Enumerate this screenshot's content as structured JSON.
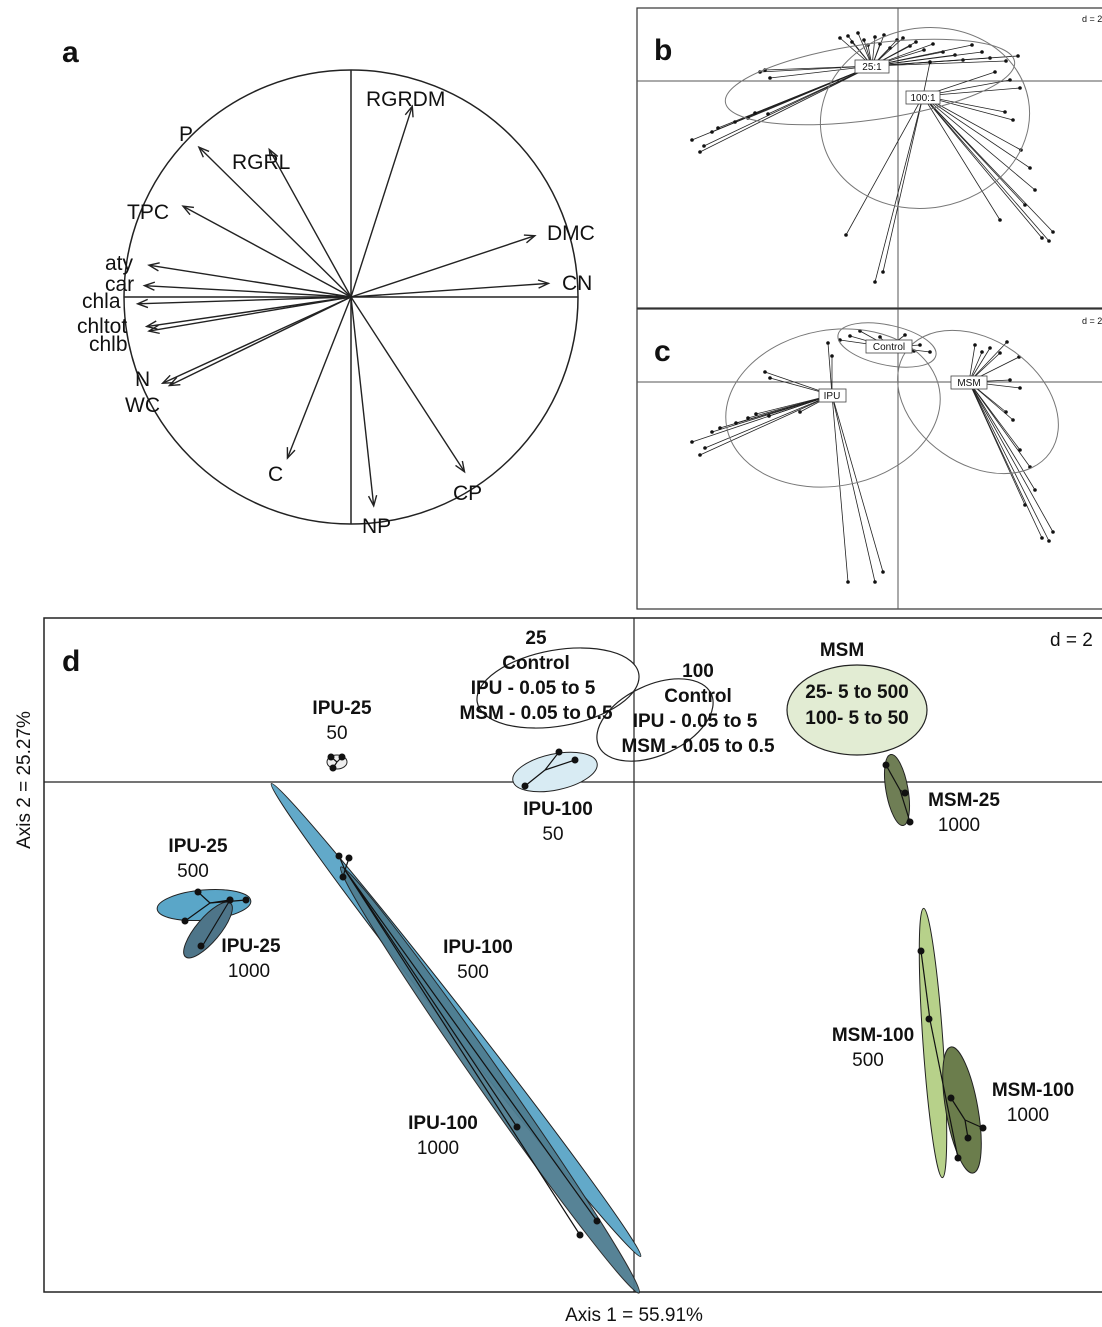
{
  "chart_data": [
    {
      "panel": "a",
      "type": "correlation-circle",
      "vectors": [
        {
          "name": "RGRDM",
          "x": 0.27,
          "y": 0.84
        },
        {
          "name": "RGRL",
          "x": -0.36,
          "y": 0.65
        },
        {
          "name": "P",
          "x": -0.67,
          "y": 0.66
        },
        {
          "name": "TPC",
          "x": -0.74,
          "y": 0.4
        },
        {
          "name": "DMC",
          "x": 0.81,
          "y": 0.27
        },
        {
          "name": "CN",
          "x": 0.87,
          "y": 0.06
        },
        {
          "name": "aty",
          "x": -0.89,
          "y": 0.14
        },
        {
          "name": "car",
          "x": -0.91,
          "y": 0.05
        },
        {
          "name": "chla",
          "x": -0.94,
          "y": -0.03
        },
        {
          "name": "chltot",
          "x": -0.9,
          "y": -0.13
        },
        {
          "name": "chlb",
          "x": -0.89,
          "y": -0.15
        },
        {
          "name": "N",
          "x": -0.83,
          "y": -0.38
        },
        {
          "name": "WC",
          "x": -0.8,
          "y": -0.39
        },
        {
          "name": "C",
          "x": -0.28,
          "y": -0.71
        },
        {
          "name": "NP",
          "x": 0.1,
          "y": -0.92
        },
        {
          "name": "CP",
          "x": 0.5,
          "y": -0.77
        }
      ]
    },
    {
      "panel": "b",
      "type": "scatter",
      "scale_label": "d = 2",
      "groups": [
        {
          "name": "25:1",
          "x": -0.2,
          "y": 0.8
        },
        {
          "name": "100:1",
          "x": 1.2,
          "y": -0.9
        }
      ]
    },
    {
      "panel": "c",
      "type": "scatter",
      "scale_label": "d = 2",
      "groups": [
        {
          "name": "Control",
          "x": -0.4,
          "y": 1.7
        },
        {
          "name": "IPU",
          "x": -3.8,
          "y": -0.7
        },
        {
          "name": "MSM",
          "x": 3.8,
          "y": 0.0
        }
      ]
    },
    {
      "panel": "d",
      "type": "scatter",
      "scale_label": "d = 2",
      "xlabel": "Axis 1 = 55.91%",
      "ylabel": "Axis 2 = 25.27%",
      "groups": [
        {
          "title": "25",
          "lines": [
            "Control",
            "IPU - 0.05 to 5",
            "MSM - 0.05 to 0.5"
          ],
          "x": -1.1,
          "y": 3.0
        },
        {
          "title": "100",
          "lines": [
            "Control",
            "IPU - 0.05 to 5",
            "MSM - 0.05 to 0.5"
          ],
          "x": 0.3,
          "y": 2.2
        },
        {
          "title": "MSM",
          "lines": [
            "25- 5 to 500",
            "100- 5 to 50"
          ],
          "x": 5.4,
          "y": 2.5
        },
        {
          "title": "IPU-25",
          "sub": "50",
          "x": -6.1,
          "y": 1.0
        },
        {
          "title": "IPU-100",
          "sub": "50",
          "x": -1.8,
          "y": 0.9
        },
        {
          "title": "MSM-25",
          "sub": "1000",
          "x": 5.8,
          "y": -1.1
        },
        {
          "title": "IPU-25",
          "sub": "500",
          "x": -9.5,
          "y": -4.6
        },
        {
          "title": "IPU-25",
          "sub": "1000",
          "x": -9.5,
          "y": -5.7
        },
        {
          "title": "IPU-100",
          "sub": "500",
          "x": -6.0,
          "y": -3.7
        },
        {
          "title": "MSM-100",
          "sub": "500",
          "x": 5.6,
          "y": -9.1
        },
        {
          "title": "MSM-100",
          "sub": "1000",
          "x": 6.7,
          "y": -11.5
        },
        {
          "title": "IPU-100",
          "sub": "1000",
          "x": -2.5,
          "y": -13.0
        }
      ]
    }
  ]
}
